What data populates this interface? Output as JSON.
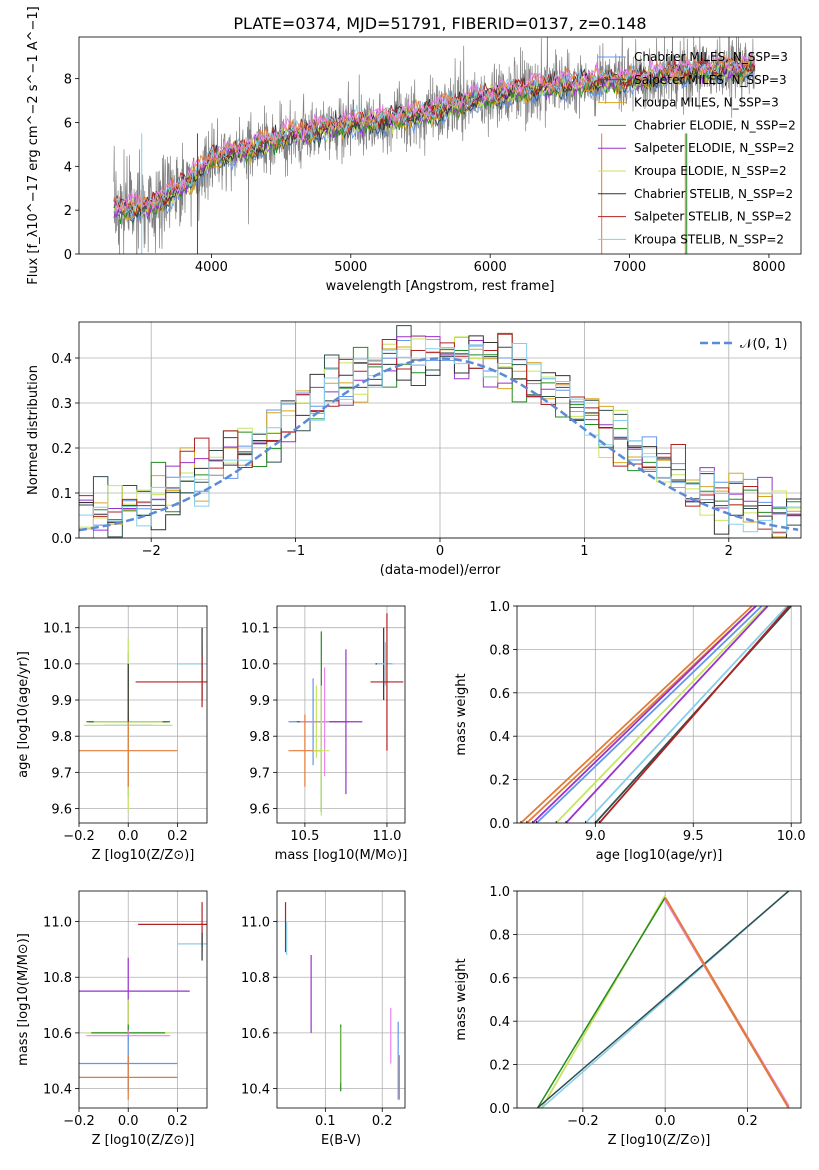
{
  "colors": {
    "chabrier_miles": "#6495ed",
    "salpeter_miles": "#2f4f4f",
    "kroupa_miles": "#daa520",
    "chabrier_elodie": "#228b22",
    "salpeter_elodie": "#9932cc",
    "kroupa_elodie": "#c6e65f",
    "chabrier_stelib": "#333333",
    "salpeter_stelib": "#b22222",
    "kroupa_stelib": "#87ceeb",
    "data": "#808080",
    "extra1": "#e07b39",
    "extra2": "#ee82ee",
    "normal": "#5b8ad6"
  },
  "chart_data": [
    {
      "id": "spectrum",
      "type": "line",
      "title": "PLATE=0374, MJD=51791, FIBERID=0137, z=0.148",
      "xlabel": "wavelength [Angstrom, rest frame]",
      "ylabel": "Flux [f_λ10^−17 erg cm^−2 s^−1 A^−1]",
      "xlim": [
        3050,
        8230
      ],
      "ylim": [
        0,
        9.9
      ],
      "xticks": [
        "4000",
        "5000",
        "6000",
        "7000",
        "8000"
      ],
      "yticks": [
        "0",
        "2",
        "4",
        "6",
        "8"
      ],
      "grid": false,
      "legend": "top-right",
      "legend_entries": [
        "Chabrier MILES, N_SSP=3",
        "Salpeter MILES, N_SSP=3",
        "Kroupa MILES, N_SSP=3",
        "Chabrier ELODIE, N_SSP=2",
        "Salpeter ELODIE, N_SSP=2",
        "Kroupa ELODIE, N_SSP=2",
        "Chabrier STELIB, N_SSP=2",
        "Salpeter STELIB, N_SSP=2",
        "Kroupa STELIB, N_SSP=2"
      ],
      "model_continuum": {
        "x": [
          3300,
          3500,
          3700,
          3900,
          4000,
          4200,
          4500,
          5000,
          5500,
          6000,
          6500,
          7000,
          7500,
          7900
        ],
        "y": [
          2.1,
          2.0,
          2.6,
          3.6,
          4.3,
          4.6,
          5.3,
          5.9,
          6.3,
          7.2,
          7.7,
          7.9,
          8.3,
          8.5
        ]
      }
    },
    {
      "id": "residuals",
      "type": "line",
      "xlabel": "(data-model)/error",
      "ylabel": "Normed distribution",
      "xlim": [
        -2.5,
        2.5
      ],
      "ylim": [
        0,
        0.48
      ],
      "xticks": [
        "−2",
        "−1",
        "0",
        "1",
        "2"
      ],
      "yticks": [
        "0.0",
        "0.1",
        "0.2",
        "0.3",
        "0.4"
      ],
      "grid": true,
      "legend": "top-right",
      "legend_entries": [
        "𝒩(0, 1)"
      ],
      "normal_curve": {
        "mu": 0,
        "sigma": 1
      }
    },
    {
      "id": "age_vs_Z",
      "type": "scatter",
      "xlabel": "Z [log10(Z/Z⊙)]",
      "ylabel": "age  [log10(age/yr)]",
      "xlim": [
        -0.2,
        0.32
      ],
      "ylim": [
        9.56,
        10.16
      ],
      "xticks": [
        "−0.2",
        "0.0",
        "0.2"
      ],
      "yticks": [
        "9.6",
        "9.7",
        "9.8",
        "9.9",
        "10.0",
        "10.1"
      ],
      "grid": true
    },
    {
      "id": "age_vs_mass",
      "type": "scatter",
      "xlabel": "mass [log10(M/M⊙)]",
      "xlim": [
        10.33,
        11.11
      ],
      "ylim": [
        9.56,
        10.16
      ],
      "xticks": [
        "10.5",
        "11.0"
      ],
      "yticks": [
        "9.6",
        "9.7",
        "9.8",
        "9.9",
        "10.0",
        "10.1"
      ],
      "grid": true
    },
    {
      "id": "cum_age",
      "type": "line",
      "xlabel": "age  [log10(age/yr)]",
      "ylabel": "mass weight",
      "xlim": [
        8.6,
        10.05
      ],
      "ylim": [
        0,
        1
      ],
      "xticks": [
        "9.0",
        "9.5",
        "10.0"
      ],
      "yticks": [
        "0.0",
        "0.2",
        "0.4",
        "0.6",
        "0.8",
        "1.0"
      ],
      "grid": true
    },
    {
      "id": "mass_vs_Z",
      "type": "scatter",
      "xlabel": "Z [log10(Z/Z⊙)]",
      "ylabel": "mass [log10(M/M⊙)]",
      "xlim": [
        -0.2,
        0.32
      ],
      "ylim": [
        10.33,
        11.11
      ],
      "xticks": [
        "−0.2",
        "0.0",
        "0.2"
      ],
      "yticks": [
        "10.4",
        "10.6",
        "10.8",
        "11.0"
      ],
      "grid": true
    },
    {
      "id": "mass_vs_ebv",
      "type": "scatter",
      "xlabel": "E(B-V)",
      "xlim": [
        0.015,
        0.24
      ],
      "ylim": [
        10.33,
        11.11
      ],
      "xticks": [
        "0.1",
        "0.2"
      ],
      "yticks": [
        "10.4",
        "10.6",
        "10.8",
        "11.0"
      ],
      "grid": true
    },
    {
      "id": "cum_Z",
      "type": "line",
      "xlabel": "Z [log10(Z/Z⊙)]",
      "ylabel": "mass weight",
      "xlim": [
        -0.36,
        0.33
      ],
      "ylim": [
        0,
        1
      ],
      "xticks": [
        "−0.2",
        "0.0",
        "0.2"
      ],
      "yticks": [
        "0.0",
        "0.2",
        "0.4",
        "0.6",
        "0.8",
        "1.0"
      ],
      "grid": true
    }
  ]
}
